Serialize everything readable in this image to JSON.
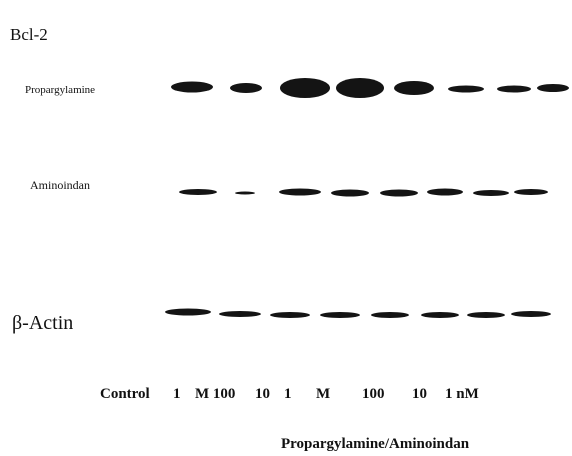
{
  "figure": {
    "title": "Bcl-2",
    "rows": [
      "Propargylamine",
      "Aminoindan",
      "β-Actin"
    ],
    "lanes": [
      "Control",
      "1",
      "M 100",
      "10",
      "1",
      "M",
      "100",
      "10",
      "1 nM"
    ],
    "caption": "Propargylamine/Aminoindan"
  }
}
